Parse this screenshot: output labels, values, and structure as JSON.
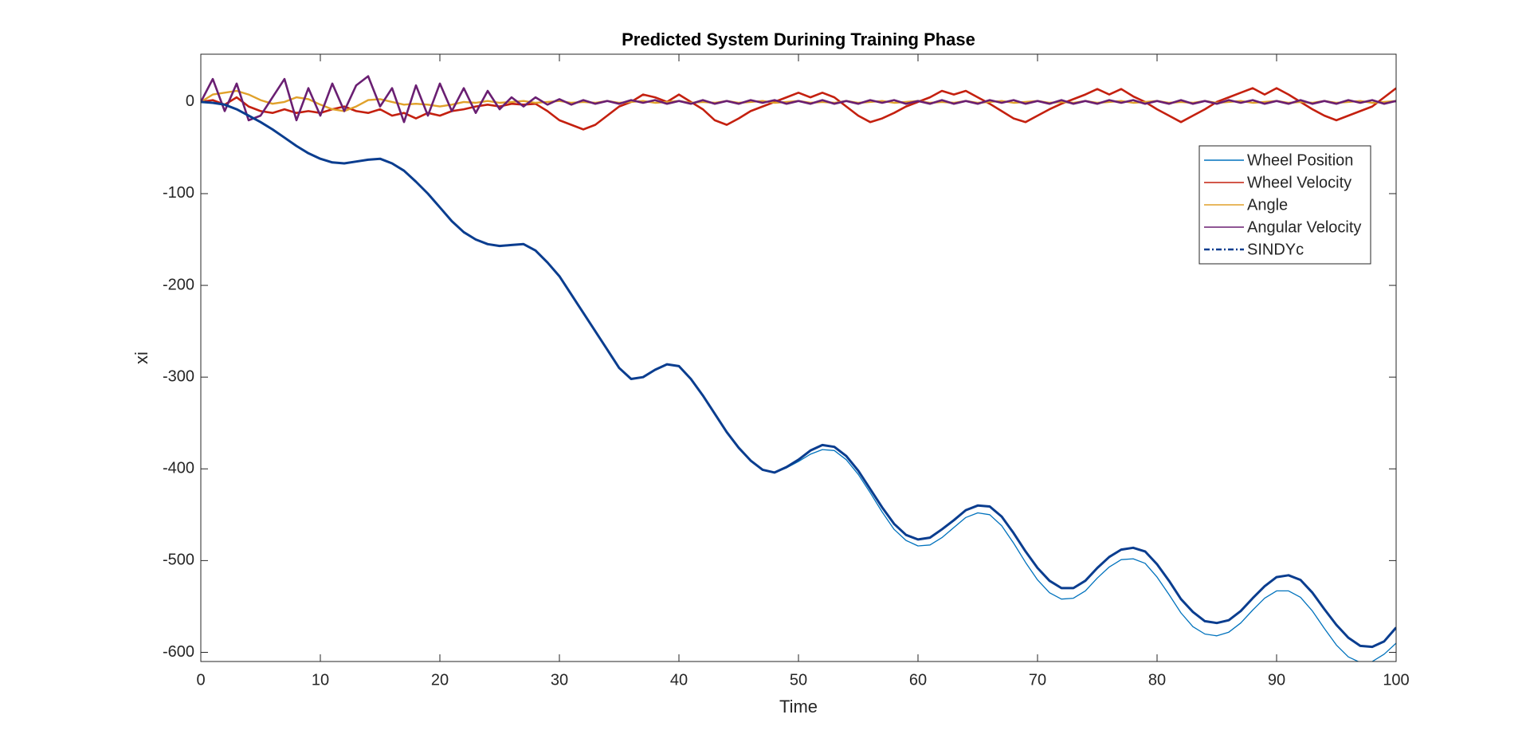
{
  "chart_data": {
    "type": "line",
    "title": "Predicted System Durining Training Phase",
    "xlabel": "Time",
    "ylabel": "xi",
    "x": [
      0,
      1,
      2,
      3,
      4,
      5,
      6,
      7,
      8,
      9,
      10,
      11,
      12,
      13,
      14,
      15,
      16,
      17,
      18,
      19,
      20,
      21,
      22,
      23,
      24,
      25,
      26,
      27,
      28,
      29,
      30,
      31,
      32,
      33,
      34,
      35,
      36,
      37,
      38,
      39,
      40,
      41,
      42,
      43,
      44,
      45,
      46,
      47,
      48,
      49,
      50,
      51,
      52,
      53,
      54,
      55,
      56,
      57,
      58,
      59,
      60,
      61,
      62,
      63,
      64,
      65,
      66,
      67,
      68,
      69,
      70,
      71,
      72,
      73,
      74,
      75,
      76,
      77,
      78,
      79,
      80,
      81,
      82,
      83,
      84,
      85,
      86,
      87,
      88,
      89,
      90,
      91,
      92,
      93,
      94,
      95,
      96,
      97,
      98,
      99,
      100
    ],
    "series": [
      {
        "name": "Wheel Position",
        "color": "#0072bd",
        "width": 1.3,
        "values": [
          0,
          -1,
          -3,
          -8,
          -15,
          -22,
          -30,
          -39,
          -48,
          -56,
          -62,
          -66,
          -67,
          -65,
          -63,
          -62,
          -67,
          -75,
          -87,
          -100,
          -115,
          -130,
          -142,
          -150,
          -155,
          -157,
          -156,
          -155,
          -162,
          -175,
          -190,
          -210,
          -230,
          -250,
          -270,
          -290,
          -302,
          -300,
          -292,
          -286,
          -288,
          -302,
          -320,
          -340,
          -360,
          -377,
          -391,
          -401,
          -404,
          -399,
          -392,
          -384,
          -379,
          -380,
          -390,
          -406,
          -426,
          -447,
          -466,
          -478,
          -484,
          -483,
          -475,
          -464,
          -453,
          -448,
          -450,
          -462,
          -481,
          -502,
          -521,
          -535,
          -542,
          -541,
          -533,
          -519,
          -507,
          -499,
          -498,
          -503,
          -518,
          -537,
          -557,
          -572,
          -580,
          -582,
          -578,
          -568,
          -554,
          -541,
          -533,
          -533,
          -540,
          -555,
          -574,
          -592,
          -605,
          -611,
          -610,
          -602,
          -590
        ]
      },
      {
        "name": "Wheel Velocity",
        "color": "#c4200f",
        "width": 2.6,
        "values": [
          0,
          2,
          -3,
          5,
          -5,
          -10,
          -12,
          -8,
          -12,
          -10,
          -12,
          -8,
          -5,
          -10,
          -12,
          -8,
          -15,
          -12,
          -18,
          -12,
          -15,
          -10,
          -8,
          -5,
          -3,
          -5,
          -2,
          -3,
          -2,
          -10,
          -20,
          -25,
          -30,
          -25,
          -15,
          -5,
          0,
          8,
          5,
          0,
          8,
          0,
          -8,
          -20,
          -25,
          -18,
          -10,
          -5,
          0,
          5,
          10,
          5,
          10,
          5,
          -5,
          -15,
          -22,
          -18,
          -12,
          -5,
          0,
          5,
          12,
          8,
          12,
          5,
          -2,
          -10,
          -18,
          -22,
          -15,
          -8,
          -2,
          3,
          8,
          14,
          8,
          14,
          6,
          0,
          -8,
          -15,
          -22,
          -15,
          -8,
          0,
          5,
          10,
          15,
          8,
          15,
          8,
          0,
          -8,
          -15,
          -20,
          -15,
          -10,
          -5,
          5,
          15
        ]
      },
      {
        "name": "Angle",
        "color": "#e0a12a",
        "width": 2.4,
        "values": [
          0,
          8,
          10,
          12,
          8,
          2,
          -2,
          0,
          5,
          3,
          -3,
          -8,
          -10,
          -5,
          2,
          3,
          0,
          -3,
          -2,
          -3,
          -5,
          -3,
          0,
          -1,
          1,
          -1,
          0,
          1,
          -1,
          0,
          1,
          -1,
          0,
          -1,
          1,
          -1,
          0,
          1,
          -1,
          0,
          1,
          -1,
          0,
          -1,
          1,
          -1,
          0,
          1,
          -1,
          0,
          1,
          -1,
          0,
          -1,
          1,
          -1,
          0,
          1,
          -1,
          0,
          1,
          -1,
          0,
          -1,
          1,
          -1,
          0,
          1,
          -1,
          0,
          1,
          -1,
          0,
          -1,
          1,
          -1,
          0,
          1,
          -1,
          0,
          1,
          -1,
          0,
          -1,
          1,
          -1,
          0,
          1,
          -1,
          0,
          1,
          -1,
          0,
          -1,
          1,
          -1,
          0,
          1,
          -1,
          0,
          1
        ]
      },
      {
        "name": "Angular Velocity",
        "color": "#6a1f72",
        "width": 2.6,
        "values": [
          0,
          25,
          -10,
          20,
          -20,
          -15,
          5,
          25,
          -20,
          15,
          -15,
          20,
          -10,
          18,
          28,
          -5,
          15,
          -22,
          18,
          -15,
          20,
          -10,
          15,
          -12,
          12,
          -8,
          5,
          -5,
          5,
          -3,
          3,
          -3,
          2,
          -2,
          1,
          -2,
          2,
          -1,
          2,
          -2,
          1,
          -2,
          2,
          -2,
          1,
          -2,
          2,
          -1,
          2,
          -2,
          1,
          -2,
          2,
          -2,
          1,
          -2,
          2,
          -1,
          2,
          -2,
          1,
          -2,
          2,
          -2,
          1,
          -2,
          2,
          -1,
          2,
          -2,
          1,
          -2,
          2,
          -2,
          1,
          -2,
          2,
          -1,
          2,
          -2,
          1,
          -2,
          2,
          -2,
          1,
          -2,
          2,
          -1,
          2,
          -2,
          1,
          -2,
          2,
          -2,
          1,
          -2,
          2,
          -1,
          2,
          -2,
          1
        ]
      },
      {
        "name": "SINDYc",
        "color": "#0a3d8f",
        "width": 3,
        "values": [
          0,
          -1,
          -3,
          -8,
          -15,
          -22,
          -30,
          -39,
          -48,
          -56,
          -62,
          -66,
          -67,
          -65,
          -63,
          -62,
          -67,
          -75,
          -87,
          -100,
          -115,
          -130,
          -142,
          -150,
          -155,
          -157,
          -156,
          -155,
          -162,
          -175,
          -190,
          -210,
          -230,
          -250,
          -270,
          -290,
          -302,
          -300,
          -292,
          -286,
          -288,
          -302,
          -320,
          -340,
          -360,
          -377,
          -391,
          -401,
          -404,
          -398,
          -390,
          -380,
          -374,
          -376,
          -386,
          -402,
          -422,
          -442,
          -460,
          -472,
          -477,
          -475,
          -466,
          -456,
          -445,
          -440,
          -441,
          -452,
          -470,
          -490,
          -508,
          -522,
          -530,
          -530,
          -522,
          -508,
          -496,
          -488,
          -486,
          -490,
          -504,
          -522,
          -542,
          -556,
          -566,
          -568,
          -565,
          -555,
          -541,
          -528,
          -518,
          -516,
          -521,
          -535,
          -553,
          -570,
          -584,
          -593,
          -594,
          -588,
          -573
        ]
      }
    ],
    "xlim": [
      0,
      100
    ],
    "xticks": [
      0,
      10,
      20,
      30,
      40,
      50,
      60,
      70,
      80,
      90,
      100
    ],
    "ylim": [
      -610,
      52
    ],
    "yticks": [
      -600,
      -500,
      -400,
      -300,
      -200,
      -100,
      0
    ],
    "legend_position": "northeast"
  }
}
